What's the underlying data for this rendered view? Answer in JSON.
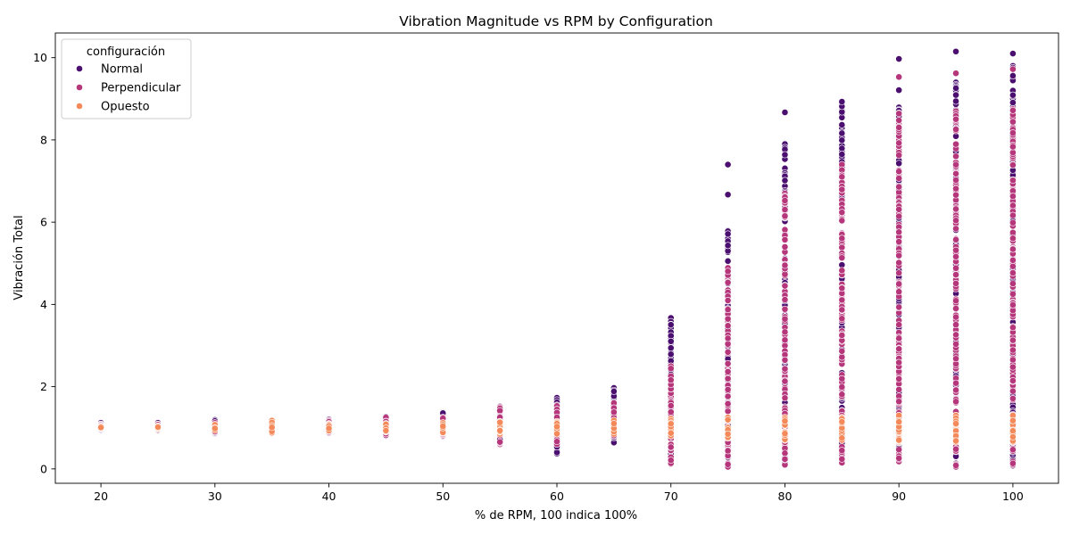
{
  "chart_data": {
    "type": "scatter",
    "title": "Vibration Magnitude vs RPM by Configuration",
    "xlabel": "% de RPM, 100 indica 100%",
    "ylabel": "Vibración Total",
    "xlim": [
      16,
      104
    ],
    "ylim": [
      -0.35,
      10.6
    ],
    "xticks": [
      20,
      30,
      40,
      50,
      60,
      70,
      80,
      90,
      100
    ],
    "yticks": [
      0,
      2,
      4,
      6,
      8,
      10
    ],
    "grid": false,
    "legend": {
      "title": "configuración",
      "placement": "top-left",
      "entries": [
        "Normal",
        "Perpendicular",
        "Opuesto"
      ]
    },
    "series": [
      {
        "name": "Normal",
        "color": "#4a0f6f",
        "groups": [
          {
            "x": 20,
            "min": 0.95,
            "max": 1.12
          },
          {
            "x": 25,
            "min": 0.93,
            "max": 1.12
          },
          {
            "x": 30,
            "min": 0.86,
            "max": 1.19
          },
          {
            "x": 35,
            "min": 0.87,
            "max": 1.18
          },
          {
            "x": 40,
            "min": 0.87,
            "max": 1.21
          },
          {
            "x": 45,
            "min": 0.8,
            "max": 1.27
          },
          {
            "x": 50,
            "min": 0.78,
            "max": 1.38
          },
          {
            "x": 55,
            "min": 0.63,
            "max": 1.52
          },
          {
            "x": 60,
            "min": 0.37,
            "max": 1.73
          },
          {
            "x": 65,
            "min": 0.64,
            "max": 1.98
          },
          {
            "x": 70,
            "min": 0.13,
            "max": 3.67
          },
          {
            "x": 75,
            "min": 0.05,
            "max": 5.8,
            "outliers": [
              7.4,
              6.67
            ]
          },
          {
            "x": 80,
            "min": 0.1,
            "max": 7.9,
            "outliers": [
              8.67
            ]
          },
          {
            "x": 85,
            "min": 0.15,
            "max": 8.9,
            "outliers": [
              8.93
            ]
          },
          {
            "x": 90,
            "min": 0.2,
            "max": 8.8,
            "outliers": [
              9.97,
              9.21
            ]
          },
          {
            "x": 95,
            "min": 0.1,
            "max": 9.4,
            "outliers": [
              10.15
            ]
          },
          {
            "x": 100,
            "min": 0.08,
            "max": 9.8,
            "outliers": [
              10.1
            ]
          }
        ]
      },
      {
        "name": "Perpendicular",
        "color": "#b5367a",
        "groups": [
          {
            "x": 20,
            "min": 0.97,
            "max": 1.08
          },
          {
            "x": 25,
            "min": 0.96,
            "max": 1.08
          },
          {
            "x": 30,
            "min": 0.9,
            "max": 1.12
          },
          {
            "x": 35,
            "min": 0.88,
            "max": 1.15
          },
          {
            "x": 40,
            "min": 0.88,
            "max": 1.17
          },
          {
            "x": 45,
            "min": 0.82,
            "max": 1.25
          },
          {
            "x": 50,
            "min": 0.8,
            "max": 1.25
          },
          {
            "x": 55,
            "min": 0.6,
            "max": 1.5
          },
          {
            "x": 60,
            "min": 0.6,
            "max": 1.55
          },
          {
            "x": 65,
            "min": 0.8,
            "max": 1.6
          },
          {
            "x": 70,
            "min": 0.12,
            "max": 2.5
          },
          {
            "x": 75,
            "min": 0.05,
            "max": 4.9
          },
          {
            "x": 80,
            "min": 0.1,
            "max": 6.7
          },
          {
            "x": 85,
            "min": 0.15,
            "max": 7.4
          },
          {
            "x": 90,
            "min": 0.18,
            "max": 8.65,
            "outliers": [
              9.53
            ]
          },
          {
            "x": 95,
            "min": 0.05,
            "max": 8.7,
            "outliers": [
              9.62
            ]
          },
          {
            "x": 100,
            "min": 0.1,
            "max": 8.75,
            "outliers": [
              9.72
            ]
          }
        ]
      },
      {
        "name": "Opuesto",
        "color": "#f4895a",
        "groups": [
          {
            "x": 20,
            "min": 0.98,
            "max": 1.03
          },
          {
            "x": 25,
            "min": 0.97,
            "max": 1.04
          },
          {
            "x": 30,
            "min": 0.94,
            "max": 1.08
          },
          {
            "x": 35,
            "min": 0.88,
            "max": 1.18
          },
          {
            "x": 40,
            "min": 0.92,
            "max": 1.1
          },
          {
            "x": 45,
            "min": 0.9,
            "max": 1.1
          },
          {
            "x": 50,
            "min": 0.88,
            "max": 1.12
          },
          {
            "x": 55,
            "min": 0.85,
            "max": 1.15
          },
          {
            "x": 60,
            "min": 0.85,
            "max": 1.15
          },
          {
            "x": 65,
            "min": 0.85,
            "max": 1.18
          },
          {
            "x": 70,
            "min": 0.8,
            "max": 1.22
          },
          {
            "x": 75,
            "min": 0.75,
            "max": 1.25
          },
          {
            "x": 80,
            "min": 0.7,
            "max": 1.25
          },
          {
            "x": 85,
            "min": 0.7,
            "max": 1.25
          },
          {
            "x": 90,
            "min": 0.65,
            "max": 1.3
          },
          {
            "x": 95,
            "min": 0.65,
            "max": 1.3
          },
          {
            "x": 100,
            "min": 0.65,
            "max": 1.3
          }
        ]
      }
    ]
  }
}
